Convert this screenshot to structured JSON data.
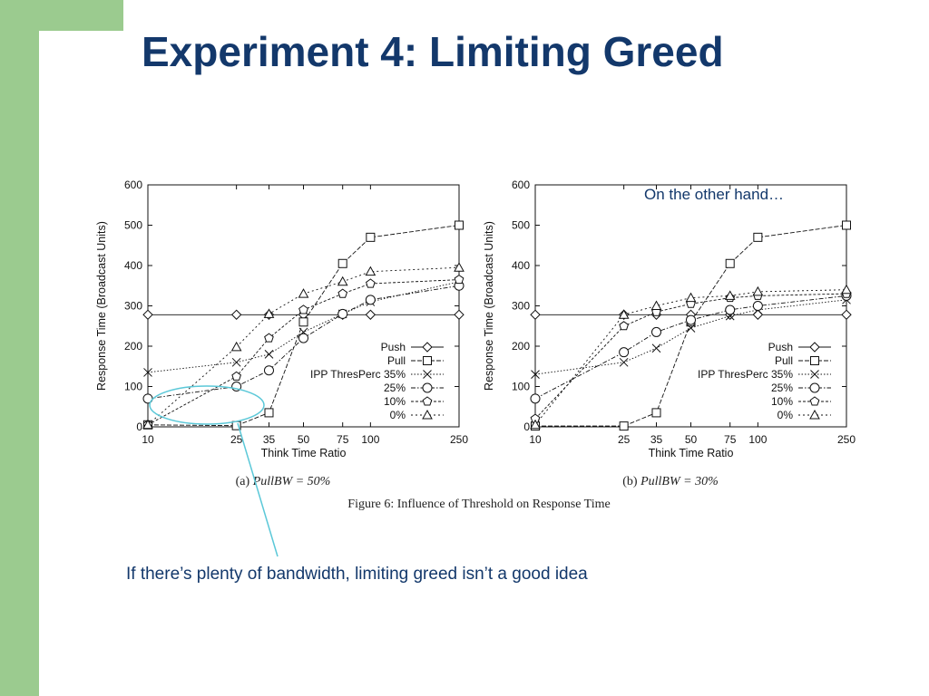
{
  "slide": {
    "title": "Experiment 4: Limiting Greed",
    "bottom_note": "If there’s plenty of bandwidth, limiting greed isn’t a good idea",
    "top_note": "On the other hand…",
    "accent_color": "#9bcb8f",
    "title_color": "#13386b",
    "callout_color": "#5bc8d8"
  },
  "figure": {
    "caption": "Figure 6: Influence of Threshold on Response Time"
  },
  "chart_data": [
    {
      "type": "line",
      "panel_label": "(a)",
      "panel_caption": "PullBW = 50%",
      "xlabel": "Think Time Ratio",
      "ylabel": "Response Time (Broadcast Units)",
      "x": [
        10,
        25,
        35,
        50,
        75,
        100,
        250
      ],
      "x_tick_labels": [
        "10",
        "25",
        "35",
        "50",
        "75",
        "100",
        "250"
      ],
      "x_scale": "log",
      "ylim": [
        0,
        600
      ],
      "y_ticks": [
        0,
        100,
        200,
        300,
        400,
        500,
        600
      ],
      "legend_position": "bottom-right",
      "grid": false,
      "series": [
        {
          "name": "Push",
          "marker": "diamond",
          "values": [
            278,
            278,
            278,
            278,
            278,
            278,
            278
          ]
        },
        {
          "name": "Pull",
          "marker": "square",
          "values": [
            5,
            3,
            35,
            260,
            405,
            470,
            500
          ]
        },
        {
          "name": "IPP ThresPerc 35%",
          "marker": "x",
          "values": [
            135,
            160,
            180,
            235,
            280,
            310,
            360
          ]
        },
        {
          "name": "25%",
          "marker": "circle",
          "values": [
            70,
            100,
            140,
            220,
            280,
            315,
            350
          ]
        },
        {
          "name": "10%",
          "marker": "pentagon",
          "values": [
            5,
            125,
            220,
            290,
            330,
            355,
            365
          ]
        },
        {
          "name": "0%",
          "marker": "triangle",
          "values": [
            5,
            198,
            280,
            330,
            360,
            385,
            395
          ]
        }
      ]
    },
    {
      "type": "line",
      "panel_label": "(b)",
      "panel_caption": "PullBW = 30%",
      "xlabel": "Think Time Ratio",
      "ylabel": "Response Time (Broadcast Units)",
      "x": [
        10,
        25,
        35,
        50,
        75,
        100,
        250
      ],
      "x_tick_labels": [
        "10",
        "25",
        "35",
        "50",
        "75",
        "100",
        "250"
      ],
      "x_scale": "log",
      "ylim": [
        0,
        600
      ],
      "y_ticks": [
        0,
        100,
        200,
        300,
        400,
        500,
        600
      ],
      "legend_position": "bottom-right",
      "grid": false,
      "series": [
        {
          "name": "Push",
          "marker": "diamond",
          "values": [
            278,
            278,
            278,
            278,
            278,
            278,
            278
          ]
        },
        {
          "name": "Pull",
          "marker": "square",
          "values": [
            2,
            2,
            35,
            260,
            405,
            470,
            500
          ]
        },
        {
          "name": "IPP ThresPerc 35%",
          "marker": "x",
          "values": [
            130,
            160,
            195,
            245,
            275,
            290,
            315
          ]
        },
        {
          "name": "25%",
          "marker": "circle",
          "values": [
            70,
            185,
            235,
            265,
            290,
            300,
            325
          ]
        },
        {
          "name": "10%",
          "marker": "pentagon",
          "values": [
            20,
            250,
            285,
            305,
            320,
            325,
            330
          ]
        },
        {
          "name": "0%",
          "marker": "triangle",
          "values": [
            5,
            278,
            300,
            320,
            325,
            335,
            340
          ]
        }
      ]
    }
  ]
}
